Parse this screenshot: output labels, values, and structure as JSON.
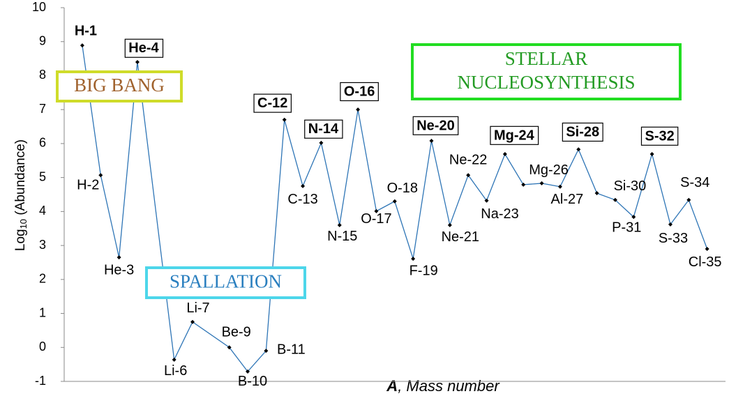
{
  "chart_data": {
    "type": "line",
    "xlabel": {
      "symbol": "A",
      "text": ", Mass number"
    },
    "ylabel": {
      "text": "Log",
      "subscript": "10",
      "suffix": " (Abundance)"
    },
    "x": [
      1,
      2,
      3,
      4,
      6,
      7,
      9,
      10,
      11,
      12,
      13,
      14,
      15,
      16,
      17,
      18,
      19,
      20,
      21,
      22,
      23,
      24,
      25,
      26,
      27,
      28,
      29,
      30,
      31,
      32,
      33,
      34,
      35
    ],
    "labels": [
      "H-1",
      "H-2",
      "He-3",
      "He-4",
      "Li-6",
      "Li-7",
      "Be-9",
      "B-10",
      "B-11",
      "C-12",
      "C-13",
      "N-14",
      "N-15",
      "O-16",
      "O-17",
      "O-18",
      "F-19",
      "Ne-20",
      "Ne-21",
      "Ne-22",
      "Na-23",
      "Mg-24",
      null,
      "Mg-26",
      "Al-27",
      "Si-28",
      null,
      "Si-30",
      "P-31",
      "S-32",
      "S-33",
      "S-34",
      "Cl-35"
    ],
    "series": [
      {
        "color": "#2e75b6",
        "marker_color": "#000000",
        "values": [
          8.89,
          5.07,
          2.65,
          8.4,
          -0.36,
          0.75,
          0.0,
          -0.71,
          -0.1,
          6.7,
          4.75,
          6.02,
          3.6,
          7.0,
          4.01,
          4.3,
          2.61,
          6.08,
          3.6,
          5.07,
          4.32,
          5.69,
          4.79,
          4.83,
          4.73,
          5.83,
          4.54,
          4.34,
          3.84,
          5.69,
          3.62,
          4.34,
          2.9
        ]
      }
    ],
    "xlim": [
      0,
      36
    ],
    "ylim": [
      -1,
      10
    ],
    "yticks": [
      -1,
      0,
      1,
      2,
      3,
      4,
      5,
      6,
      7,
      8,
      9,
      10
    ],
    "grid": false,
    "annotations": [
      {
        "lines": [
          "BIG BANG"
        ],
        "color": "#a0622d",
        "border": "#cfdc2a"
      },
      {
        "lines": [
          "SPALLATION"
        ],
        "color": "#2a7fbf",
        "border": "#4dd6ea"
      },
      {
        "lines": [
          "STELLAR",
          "NUCLEOSYNTHESIS"
        ],
        "color": "#239b23",
        "border": "#22dd22"
      }
    ]
  }
}
